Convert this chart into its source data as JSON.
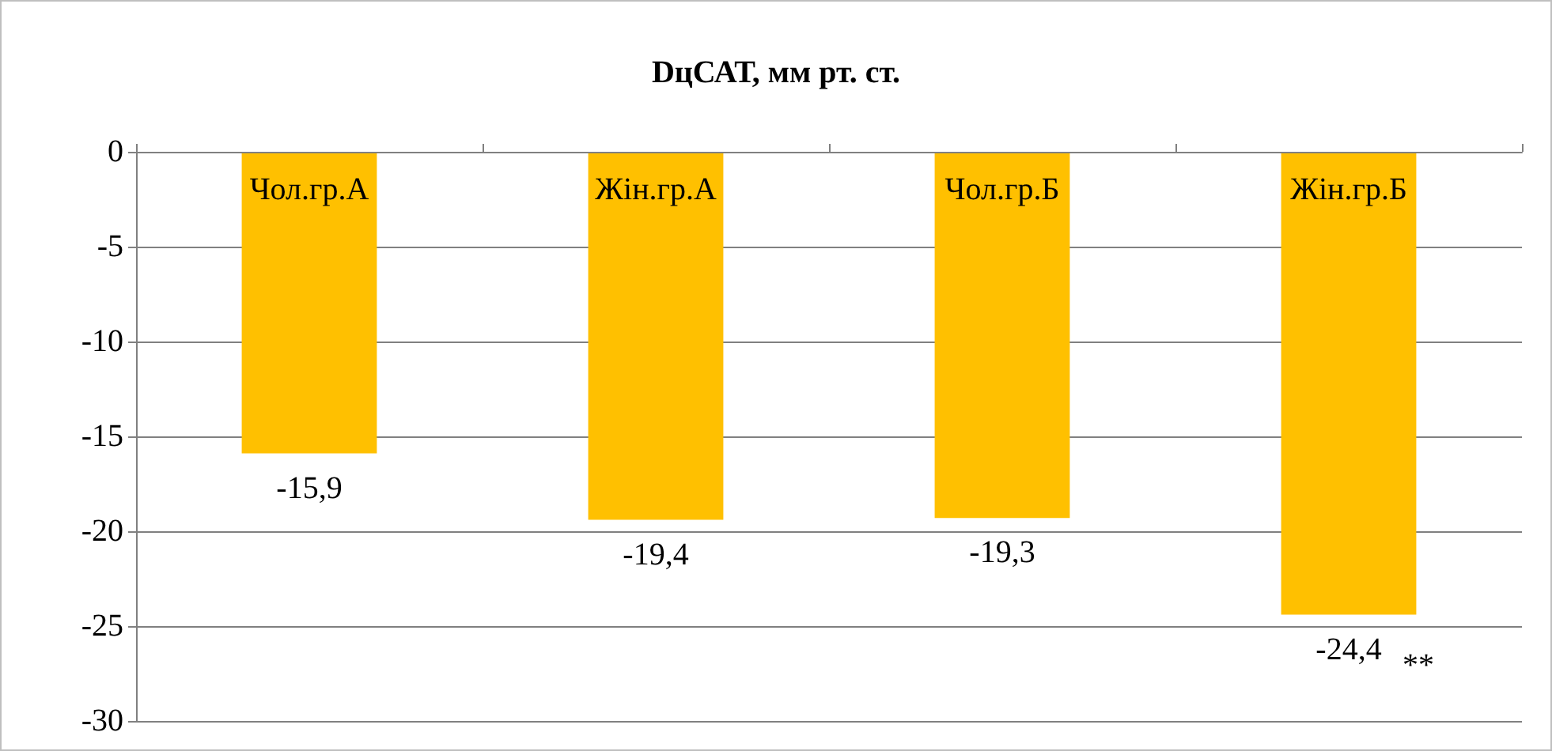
{
  "chart_data": {
    "type": "bar",
    "title": "DцСАТ, мм рт. ст.",
    "categories": [
      "Чол.гр.А",
      "Жін.гр.А",
      "Чол.гр.Б",
      "Жін.гр.Б"
    ],
    "values": [
      -15.9,
      -19.4,
      -19.3,
      -24.4
    ],
    "color": "#ffc000",
    "value_labels": [
      "-15,9",
      "-19,4",
      "-19,3",
      "-24,4"
    ],
    "annotations": [
      {
        "text": "**",
        "x": "Жін.гр.Б",
        "y": -24.4
      }
    ],
    "ylim": [
      -30,
      0
    ],
    "yticks": [
      0,
      -5,
      -10,
      -15,
      -20,
      -25,
      -30
    ],
    "grid": "y"
  }
}
